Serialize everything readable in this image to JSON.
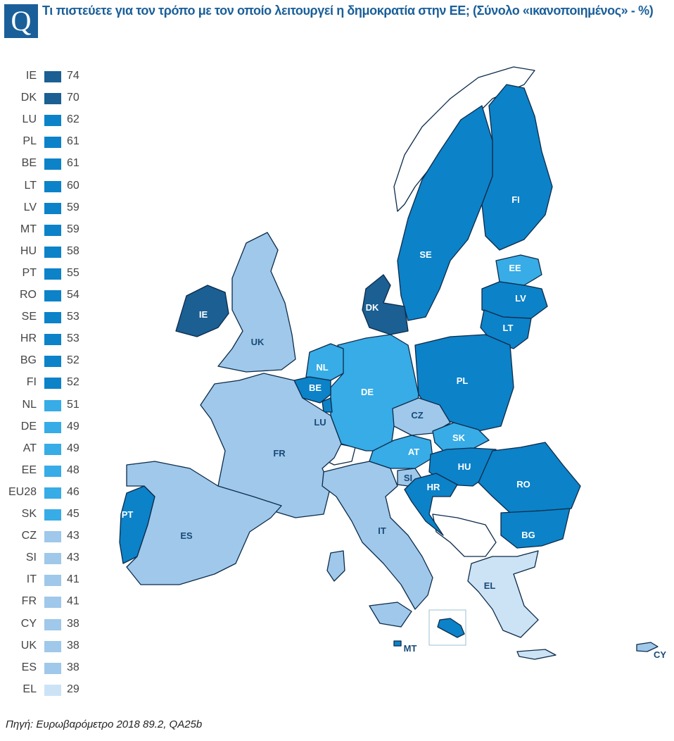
{
  "header": {
    "logo_letter": "Q",
    "title": "Τι πιστεύετε για τον τρόπο με τον οποίο λειτουργεί η δημοκρατία στην ΕΕ; (Σύνολο «ικανοποιημένος» - %)"
  },
  "colors": {
    "dark": "#1b5f93",
    "high": "#0c82c8",
    "mid": "#37ace6",
    "low": "#9fc8ea",
    "lowest": "#cce3f5",
    "border": "#0c2b4a"
  },
  "legend": [
    {
      "code": "IE",
      "value": "74",
      "tier": "dark"
    },
    {
      "code": "DK",
      "value": "70",
      "tier": "dark"
    },
    {
      "code": "LU",
      "value": "62",
      "tier": "high"
    },
    {
      "code": "PL",
      "value": "61",
      "tier": "high"
    },
    {
      "code": "BE",
      "value": "61",
      "tier": "high"
    },
    {
      "code": "LT",
      "value": "60",
      "tier": "high"
    },
    {
      "code": "LV",
      "value": "59",
      "tier": "high"
    },
    {
      "code": "MT",
      "value": "59",
      "tier": "high"
    },
    {
      "code": "HU",
      "value": "58",
      "tier": "high"
    },
    {
      "code": "PT",
      "value": "55",
      "tier": "high"
    },
    {
      "code": "RO",
      "value": "54",
      "tier": "high"
    },
    {
      "code": "SE",
      "value": "53",
      "tier": "high"
    },
    {
      "code": "HR",
      "value": "53",
      "tier": "high"
    },
    {
      "code": "BG",
      "value": "52",
      "tier": "high"
    },
    {
      "code": "FI",
      "value": "52",
      "tier": "high"
    },
    {
      "code": "NL",
      "value": "51",
      "tier": "mid"
    },
    {
      "code": "DE",
      "value": "49",
      "tier": "mid"
    },
    {
      "code": "AT",
      "value": "49",
      "tier": "mid"
    },
    {
      "code": "EE",
      "value": "48",
      "tier": "mid"
    },
    {
      "code": "EU28",
      "value": "46",
      "tier": "mid"
    },
    {
      "code": "SK",
      "value": "45",
      "tier": "mid"
    },
    {
      "code": "CZ",
      "value": "43",
      "tier": "low"
    },
    {
      "code": "SI",
      "value": "43",
      "tier": "low"
    },
    {
      "code": "IT",
      "value": "41",
      "tier": "low"
    },
    {
      "code": "FR",
      "value": "41",
      "tier": "low"
    },
    {
      "code": "CY",
      "value": "38",
      "tier": "low"
    },
    {
      "code": "UK",
      "value": "38",
      "tier": "low"
    },
    {
      "code": "ES",
      "value": "38",
      "tier": "low"
    },
    {
      "code": "EL",
      "value": "29",
      "tier": "lowest"
    }
  ],
  "map_labels": {
    "FI": "FI",
    "SE": "SE",
    "EE": "EE",
    "LV": "LV",
    "LT": "LT",
    "DK": "DK",
    "IE": "IE",
    "UK": "UK",
    "NL": "NL",
    "BE": "BE",
    "LU": "LU",
    "DE": "DE",
    "PL": "PL",
    "CZ": "CZ",
    "SK": "SK",
    "AT": "AT",
    "HU": "HU",
    "RO": "RO",
    "SI": "SI",
    "HR": "HR",
    "FR": "FR",
    "PT": "PT",
    "ES": "ES",
    "IT": "IT",
    "BG": "BG",
    "EL": "EL",
    "MT": "MT",
    "CY": "CY"
  },
  "source": "Πηγή: Ευρωβαρόμετρο 2018 89.2, QA25b"
}
